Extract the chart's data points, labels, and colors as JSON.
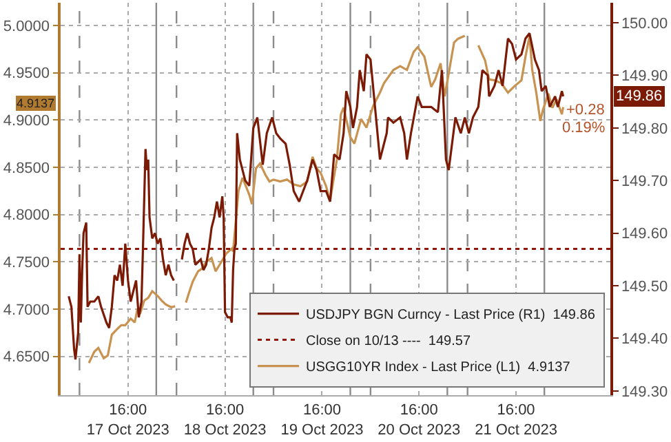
{
  "chart_data": {
    "type": "line",
    "series": [
      {
        "name": "USDJPY BGN Curncy - Last Price (R1)  149.86",
        "color": "#7b1a05",
        "axis": "y2",
        "x": [
          "2023-10-17T01:20",
          "2023-10-17T02:00",
          "2023-10-17T02:40",
          "2023-10-17T03:00",
          "2023-10-17T03:40",
          "2023-10-17T04:00",
          "2023-10-17T04:20",
          "2023-10-17T04:40",
          "2023-10-17T05:00",
          "2023-10-17T05:40",
          "2023-10-17T06:00",
          "2023-10-17T06:40",
          "2023-10-17T07:40",
          "2023-10-17T08:40",
          "2023-10-17T09:20",
          "2023-10-17T10:40",
          "2023-10-17T11:20",
          "2023-10-17T12:00",
          "2023-10-17T12:40",
          "2023-10-17T13:20",
          "2023-10-17T14:00",
          "2023-10-17T14:40",
          "2023-10-17T15:20",
          "2023-10-17T16:00",
          "2023-10-17T16:40",
          "2023-10-17T17:20",
          "2023-10-17T18:00",
          "2023-10-17T18:40",
          "2023-10-17T19:20",
          "2023-10-17T19:40",
          "2023-10-17T20:00",
          "2023-10-17T20:20",
          "2023-10-17T20:40",
          "2023-10-17T21:00",
          "2023-10-17T21:20",
          "2023-10-17T22:00",
          "2023-10-17T22:40",
          "2023-10-17T23:20",
          "2023-10-18T00:00",
          "2023-10-18T00:40",
          "2023-10-18T01:20",
          "2023-10-18T02:00",
          "2023-10-18T02:40",
          "2023-10-18T03:20",
          "2023-10-18T04:20",
          "2023-10-18T05:20",
          "2023-10-18T06:00",
          "2023-10-18T06:40",
          "2023-10-18T07:20",
          "2023-10-18T08:00",
          "2023-10-18T08:40",
          "2023-10-18T10:00",
          "2023-10-18T10:40",
          "2023-10-18T11:20",
          "2023-10-18T12:00",
          "2023-10-18T12:40",
          "2023-10-18T13:20",
          "2023-10-18T14:00",
          "2023-10-18T14:40",
          "2023-10-18T15:20",
          "2023-10-18T15:40",
          "2023-10-18T16:00",
          "2023-10-18T16:40",
          "2023-10-18T17:20",
          "2023-10-18T17:40",
          "2023-10-18T18:00",
          "2023-10-18T18:20",
          "2023-10-18T18:40",
          "2023-10-18T19:00",
          "2023-10-18T19:40",
          "2023-10-18T21:00",
          "2023-10-18T22:00",
          "2023-10-18T23:00",
          "2023-10-19T00:00",
          "2023-10-19T01:20",
          "2023-10-19T02:20",
          "2023-10-19T03:40",
          "2023-10-19T04:40",
          "2023-10-19T05:40",
          "2023-10-19T07:00",
          "2023-10-19T08:00",
          "2023-10-19T09:00",
          "2023-10-19T10:20",
          "2023-10-19T11:20",
          "2023-10-19T12:20",
          "2023-10-19T13:40",
          "2023-10-19T14:40",
          "2023-10-19T15:40",
          "2023-10-19T17:00",
          "2023-10-19T18:00",
          "2023-10-19T19:00",
          "2023-10-19T20:20",
          "2023-10-19T21:20",
          "2023-10-19T22:00",
          "2023-10-19T23:00",
          "2023-10-19T23:40",
          "2023-10-20T00:40",
          "2023-10-20T01:20",
          "2023-10-20T02:20",
          "2023-10-20T03:00",
          "2023-10-20T04:00",
          "2023-10-20T06:20",
          "2023-10-20T08:00",
          "2023-10-20T08:20",
          "2023-10-20T09:40",
          "2023-10-20T11:20",
          "2023-10-20T12:20",
          "2023-10-20T13:00",
          "2023-10-20T14:00",
          "2023-10-20T15:40",
          "2023-10-20T16:40",
          "2023-10-20T18:00",
          "2023-10-20T19:00",
          "2023-10-20T20:40",
          "2023-10-20T21:40",
          "2023-10-20T22:40",
          "2023-10-20T23:20",
          "2023-10-21T00:20",
          "2023-10-21T01:00",
          "2023-10-21T02:20",
          "2023-10-21T03:20",
          "2023-10-21T04:20",
          "2023-10-21T05:20",
          "2023-10-21T06:40",
          "2023-10-21T07:40",
          "2023-10-21T09:00",
          "2023-10-21T09:20",
          "2023-10-21T10:40",
          "2023-10-21T11:40",
          "2023-10-21T12:40",
          "2023-10-21T14:00",
          "2023-10-21T15:00",
          "2023-10-21T16:00",
          "2023-10-21T17:20",
          "2023-10-21T18:20",
          "2023-10-21T19:20",
          "2023-10-21T20:40",
          "2023-10-21T21:40",
          "2023-10-21T22:20",
          "2023-10-21T23:20",
          "2023-10-22T00:20",
          "2023-10-22T01:40",
          "2023-10-22T02:20",
          "2023-10-22T03:20",
          "2023-10-22T03:40"
        ],
        "values": [
          149.48,
          149.46,
          149.38,
          149.36,
          149.41,
          149.56,
          149.43,
          149.53,
          149.6,
          149.62,
          149.46,
          149.47,
          149.47,
          149.48,
          149.46,
          149.43,
          149.42,
          149.46,
          149.52,
          149.51,
          149.54,
          149.5,
          149.58,
          149.51,
          149.47,
          149.49,
          149.51,
          149.44,
          149.47,
          149.56,
          149.66,
          149.76,
          149.72,
          149.74,
          149.63,
          149.59,
          149.6,
          149.58,
          149.59,
          149.55,
          149.52,
          149.54,
          149.52,
          149.51,
          null,
          149.55,
          149.58,
          149.6,
          149.58,
          149.57,
          149.54,
          149.55,
          149.53,
          149.54,
          149.57,
          149.61,
          149.63,
          149.66,
          149.63,
          149.67,
          149.63,
          149.45,
          149.44,
          149.44,
          149.43,
          149.53,
          149.57,
          149.58,
          149.79,
          149.74,
          149.7,
          149.69,
          149.8,
          149.82,
          149.73,
          149.79,
          149.82,
          149.79,
          149.78,
          149.77,
          149.73,
          149.68,
          149.66,
          149.68,
          149.7,
          149.74,
          149.72,
          149.68,
          149.68,
          149.66,
          149.75,
          149.74,
          149.79,
          149.87,
          149.84,
          149.8,
          149.84,
          149.91,
          149.87,
          149.94,
          149.93,
          149.74,
          149.79,
          149.82,
          149.81,
          149.82,
          149.79,
          149.74,
          149.79,
          149.86,
          149.84,
          149.84,
          149.84,
          149.83,
          149.91,
          149.74,
          149.72,
          149.78,
          149.82,
          149.79,
          149.82,
          149.79,
          149.82,
          149.84,
          149.91,
          149.9,
          149.86,
          149.88,
          149.91,
          149.88,
          149.97,
          149.96,
          149.93,
          149.94,
          149.97,
          149.98,
          149.93,
          149.91,
          149.87,
          149.88,
          149.84,
          149.86,
          149.84,
          149.87,
          149.86
        ]
      },
      {
        "name": "USGG10YR Index - Last Price (L1)  4.9137",
        "color": "#c89350",
        "x": [
          "2023-10-17T06:20",
          "2023-10-17T07:40",
          "2023-10-17T08:40",
          "2023-10-17T10:00",
          "2023-10-17T11:00",
          "2023-10-17T12:00",
          "2023-10-17T13:20",
          "2023-10-17T14:20",
          "2023-10-17T15:20",
          "2023-10-17T16:40",
          "2023-10-17T17:40",
          "2023-10-17T18:20",
          "2023-10-17T19:00",
          "2023-10-17T20:00",
          "2023-10-17T21:00",
          "2023-10-17T22:00",
          "2023-10-17T23:20",
          "2023-10-18T00:20",
          "2023-10-18T01:20",
          "2023-10-18T02:40",
          "2023-10-18T03:40",
          "2023-10-18T05:00",
          "2023-10-18T06:20",
          "2023-10-18T07:00",
          "2023-10-18T08:00",
          "2023-10-18T09:20",
          "2023-10-18T10:20",
          "2023-10-18T11:20",
          "2023-10-18T12:40",
          "2023-10-18T13:40",
          "2023-10-18T14:40",
          "2023-10-18T16:20",
          "2023-10-18T17:40",
          "2023-10-18T18:00",
          "2023-10-18T18:40",
          "2023-10-18T19:20",
          "2023-10-18T20:20",
          "2023-10-18T22:00",
          "2023-10-18T22:40",
          "2023-10-18T23:40",
          "2023-10-19T00:40",
          "2023-10-19T02:00",
          "2023-10-19T03:00",
          "2023-10-19T04:00",
          "2023-10-19T05:40",
          "2023-10-19T07:20",
          "2023-10-19T09:00",
          "2023-10-19T10:40",
          "2023-10-19T12:20",
          "2023-10-19T13:40",
          "2023-10-19T14:40",
          "2023-10-19T15:40",
          "2023-10-19T17:00",
          "2023-10-19T18:00",
          "2023-10-19T19:40",
          "2023-10-19T20:40",
          "2023-10-19T21:20",
          "2023-10-19T23:00",
          "2023-10-20T00:00",
          "2023-10-20T01:40",
          "2023-10-20T03:00",
          "2023-10-20T04:40",
          "2023-10-20T06:20",
          "2023-10-20T07:20",
          "2023-10-20T09:40",
          "2023-10-20T11:20",
          "2023-10-20T13:00",
          "2023-10-20T14:40",
          "2023-10-20T15:40",
          "2023-10-20T17:20",
          "2023-10-20T19:00",
          "2023-10-20T20:00",
          "2023-10-20T21:20",
          "2023-10-20T22:20",
          "2023-10-20T23:20",
          "2023-10-21T00:40",
          "2023-10-21T01:40",
          "2023-10-21T03:20",
          "2023-10-21T05:00",
          "2023-10-21T06:40",
          "2023-10-21T08:20",
          "2023-10-21T09:20",
          "2023-10-21T10:40",
          "2023-10-21T12:20",
          "2023-10-21T14:00",
          "2023-10-21T15:40",
          "2023-10-21T17:20",
          "2023-10-21T18:20",
          "2023-10-21T19:20",
          "2023-10-21T20:00",
          "2023-10-21T21:00",
          "2023-10-21T22:00",
          "2023-10-21T22:40",
          "2023-10-22T00:00",
          "2023-10-22T01:00",
          "2023-10-22T02:00",
          "2023-10-22T03:20",
          "2023-10-22T03:40"
        ],
        "values": [
          4.643,
          4.655,
          4.659,
          4.648,
          4.651,
          4.673,
          4.679,
          4.683,
          4.683,
          4.69,
          4.686,
          4.7,
          4.695,
          4.709,
          4.712,
          4.719,
          4.714,
          4.709,
          4.705,
          4.702,
          4.703,
          null,
          4.707,
          4.716,
          4.729,
          4.74,
          4.743,
          4.75,
          4.754,
          4.74,
          4.747,
          4.759,
          4.764,
          4.761,
          4.793,
          4.825,
          4.839,
          4.821,
          4.811,
          4.849,
          4.854,
          4.842,
          4.835,
          4.837,
          4.835,
          4.837,
          4.832,
          4.83,
          4.835,
          4.861,
          4.849,
          4.844,
          4.83,
          4.815,
          4.858,
          4.906,
          4.913,
          4.882,
          4.875,
          4.901,
          4.892,
          4.915,
          4.929,
          4.939,
          4.953,
          4.957,
          4.953,
          4.972,
          4.977,
          4.967,
          4.935,
          4.943,
          4.96,
          4.925,
          4.949,
          4.982,
          4.986,
          4.989,
          null,
          4.979,
          4.963,
          4.943,
          4.942,
          4.939,
          4.929,
          4.936,
          4.942,
          4.967,
          4.989,
          4.953,
          4.929,
          4.899,
          4.911,
          4.928,
          4.913,
          4.922,
          4.906,
          4.9137
        ]
      }
    ],
    "xlim": [
      "2023-10-16T23:20",
      "2023-10-22T15:20"
    ],
    "xticks": [
      {
        "value": "2023-10-17T16:00",
        "label": "16:00\n17 Oct 2023"
      },
      {
        "value": "2023-10-18T16:00",
        "label": "16:00\n18 Oct 2023"
      },
      {
        "value": "2023-10-19T16:00",
        "label": "16:00\n19 Oct 2023"
      },
      {
        "value": "2023-10-20T16:00",
        "label": "16:00\n20 Oct 2023"
      },
      {
        "value": "2023-10-21T16:00",
        "label": "16:00\n21 Oct 2023"
      }
    ],
    "ylim": [
      4.609,
      5.024
    ],
    "yticks": [
      {
        "value": 4.65,
        "label": "4.6500"
      },
      {
        "value": 4.7,
        "label": "4.7000"
      },
      {
        "value": 4.75,
        "label": "4.7500"
      },
      {
        "value": 4.8,
        "label": "4.8000"
      },
      {
        "value": 4.85,
        "label": "4.8500"
      },
      {
        "value": 4.9,
        "label": "4.9000"
      },
      {
        "value": 4.95,
        "label": "4.9500"
      },
      {
        "value": 5.0,
        "label": "5.0000"
      }
    ],
    "y2lim": [
      149.292,
      150.038
    ],
    "y2ticks": [
      {
        "value": 149.3,
        "label": "149.30"
      },
      {
        "value": 149.4,
        "label": "149.40"
      },
      {
        "value": 149.5,
        "label": "149.50"
      },
      {
        "value": 149.6,
        "label": "149.60"
      },
      {
        "value": 149.7,
        "label": "149.70"
      },
      {
        "value": 149.8,
        "label": "149.80"
      },
      {
        "value": 149.9,
        "label": "149.90"
      },
      {
        "value": 150.0,
        "label": "150.00"
      }
    ],
    "ref_lines": [
      {
        "axis": "y2",
        "value": 149.57,
        "label": "Close on 10/13 ----  149.57",
        "color": "#8b1a0a",
        "line_style": "dotted"
      },
      {
        "axis": "x",
        "value": "2023-10-17T04:00",
        "color": "#8c8c8c",
        "line_style": "dashed"
      },
      {
        "axis": "x",
        "value": "2023-10-17T23:00",
        "color": "#8c8c8c",
        "line_style": "solid"
      },
      {
        "axis": "x",
        "value": "2023-10-18T04:00",
        "color": "#8c8c8c",
        "line_style": "dashed"
      },
      {
        "axis": "x",
        "value": "2023-10-18T23:00",
        "color": "#8c8c8c",
        "line_style": "solid"
      },
      {
        "axis": "x",
        "value": "2023-10-19T04:00",
        "color": "#8c8c8c",
        "line_style": "dashed"
      },
      {
        "axis": "x",
        "value": "2023-10-19T23:00",
        "color": "#8c8c8c",
        "line_style": "solid"
      },
      {
        "axis": "x",
        "value": "2023-10-20T04:00",
        "color": "#8c8c8c",
        "line_style": "dashed"
      },
      {
        "axis": "x",
        "value": "2023-10-20T23:00",
        "color": "#8c8c8c",
        "line_style": "solid"
      },
      {
        "axis": "x",
        "value": "2023-10-21T04:00",
        "color": "#8c8c8c",
        "line_style": "dashed"
      },
      {
        "axis": "x",
        "value": "2023-10-21T23:00",
        "color": "#8c8c8c",
        "line_style": "solid"
      }
    ],
    "annotations": [
      "4.9137",
      "149.86",
      "+0.28",
      "0.19%"
    ],
    "grid": true,
    "legend": "bottom right",
    "line_style": "solid",
    "marker": "none"
  }
}
